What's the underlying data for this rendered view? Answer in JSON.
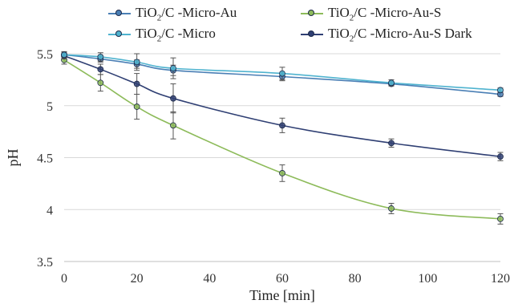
{
  "chart_data": {
    "type": "line",
    "title": "",
    "xlabel": "Time [min]",
    "ylabel": "pH",
    "xlim": [
      0,
      120
    ],
    "ylim": [
      3.5,
      5.5
    ],
    "xticks": [
      0,
      20,
      40,
      60,
      80,
      100,
      120
    ],
    "yticks": [
      3.5,
      4,
      4.5,
      5,
      5.5
    ],
    "ytick_labels": [
      "3.5",
      "4",
      "4.5",
      "5",
      "5.5"
    ],
    "grid": true,
    "legend_position": "top",
    "x": [
      0,
      10,
      20,
      30,
      60,
      90,
      120
    ],
    "series": [
      {
        "name_parts": [
          "TiO",
          "2",
          "/C -Micro-Au"
        ],
        "name": "TiO2/C -Micro-Au",
        "color": "#4a7fb5",
        "values": [
          5.49,
          5.45,
          5.4,
          5.34,
          5.28,
          5.21,
          5.11
        ],
        "errors": [
          0.03,
          0.03,
          0.04,
          0.05,
          0.04,
          0.02,
          0.02
        ]
      },
      {
        "name_parts": [
          "TiO",
          "2",
          "/C -Micro-Au-S"
        ],
        "name": "TiO2/C -Micro-Au-S",
        "color": "#8dbb5a",
        "values": [
          5.44,
          5.22,
          4.99,
          4.81,
          4.35,
          4.01,
          3.91
        ],
        "errors": [
          0.04,
          0.08,
          0.12,
          0.13,
          0.08,
          0.05,
          0.05
        ]
      },
      {
        "name_parts": [
          "TiO",
          "2",
          "/C -Micro"
        ],
        "name": "TiO2/C -Micro",
        "color": "#4fb3cf",
        "values": [
          5.49,
          5.47,
          5.42,
          5.36,
          5.31,
          5.22,
          5.15
        ],
        "errors": [
          0.03,
          0.04,
          0.08,
          0.1,
          0.06,
          0.03,
          0.02
        ]
      },
      {
        "name_parts": [
          "TiO",
          "2",
          "/C -Micro-Au-S Dark"
        ],
        "name": "TiO2/C -Micro-Au-S Dark",
        "color": "#2f3f73",
        "values": [
          5.48,
          5.35,
          5.21,
          5.07,
          4.81,
          4.64,
          4.51
        ],
        "errors": [
          0.03,
          0.05,
          0.1,
          0.14,
          0.07,
          0.04,
          0.04
        ]
      }
    ]
  }
}
